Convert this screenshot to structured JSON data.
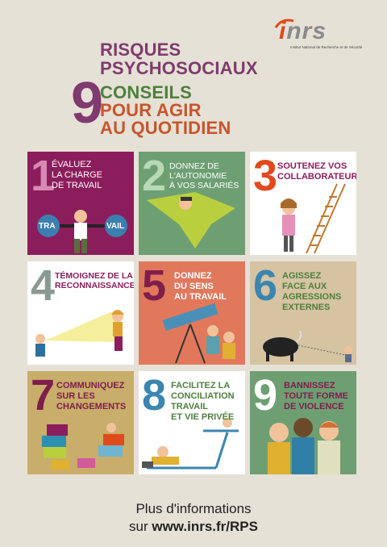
{
  "logo": {
    "name": "inrs",
    "subtitle": "Institut National de Recherche et de Sécurité"
  },
  "title": {
    "line1": "RISQUES",
    "line2": "PSYCHOSOCIAUX",
    "count": "9",
    "line3": "CONSEILS",
    "line4": "POUR AGIR",
    "line5": "AU QUOTIDIEN"
  },
  "tiles": [
    {
      "num": "1",
      "lines": [
        "ÉVALUEZ",
        "LA CHARGE",
        "DE TRAVAIL"
      ],
      "extra1": "TRA",
      "extra2": "VAIL"
    },
    {
      "num": "2",
      "lines": [
        "DONNEZ DE",
        "L'AUTONOMIE",
        "À VOS SALARIÉS"
      ]
    },
    {
      "num": "3",
      "lines": [
        "SOUTENEZ VOS",
        "COLLABORATEURS"
      ]
    },
    {
      "num": "4",
      "lines": [
        "TÉMOIGNEZ DE LA",
        "RECONNAISSANCE"
      ]
    },
    {
      "num": "5",
      "lines": [
        "DONNEZ",
        "DU SENS",
        "AU TRAVAIL"
      ]
    },
    {
      "num": "6",
      "lines": [
        "AGISSEZ",
        "FACE AUX",
        "AGRESSIONS",
        "EXTERNES"
      ]
    },
    {
      "num": "7",
      "lines": [
        "COMMUNIQUEZ",
        "SUR LES",
        "CHANGEMENTS"
      ]
    },
    {
      "num": "8",
      "lines": [
        "FACILITEZ LA",
        "CONCILIATION",
        "TRAVAIL",
        "ET VIE PRIVÉE"
      ]
    },
    {
      "num": "9",
      "lines": [
        "BANNISSEZ",
        "TOUTE FORME",
        "DE VIOLENCE"
      ]
    }
  ],
  "colors": {
    "background": "#e6e1d6",
    "purple": "#7f3a6f",
    "tile1": "#8c1d5c",
    "tile2": "#6e9f73",
    "tile5": "#e1785c",
    "tile6": "#d5c3a2",
    "tile7": "#c8ad6b",
    "tile9": "#6e9f73",
    "white": "#ffffff"
  },
  "footer": {
    "line1": "Plus d'informations",
    "prefix": "sur",
    "url": "www.inrs.fr/RPS"
  }
}
